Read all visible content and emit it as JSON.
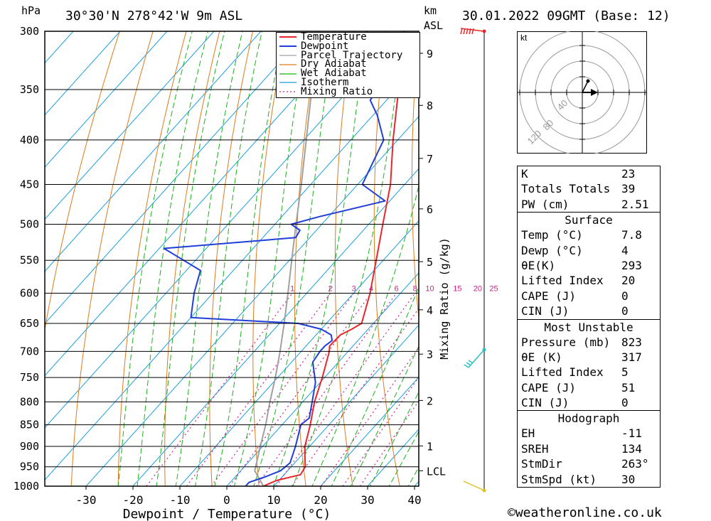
{
  "header": {
    "hpa_unit": "hPa",
    "location": "30°30'N  278°42'W  9m  ASL",
    "km_unit": "km",
    "asl_unit": "ASL",
    "datetime": "30.01.2022  09GMT  (Base: 12)"
  },
  "colors": {
    "temperature": "#e8262b",
    "dewpoint": "#1f3fd8",
    "parcel": "#a0a0a0",
    "dry_adiabat": "#e07a1a",
    "wet_adiabat": "#19b219",
    "isotherm": "#1c9fe0",
    "mixing_ratio": "#d0208a"
  },
  "legend": [
    {
      "label": "Temperature",
      "style": "temperature"
    },
    {
      "label": "Dewpoint",
      "style": "dewpoint"
    },
    {
      "label": "Parcel Trajectory",
      "style": "parcel"
    },
    {
      "label": "Dry Adiabat",
      "style": "dry_adiabat"
    },
    {
      "label": "Wet Adiabat",
      "style": "wet_adiabat"
    },
    {
      "label": "Isotherm",
      "style": "isotherm"
    },
    {
      "label": "Mixing Ratio",
      "style": "mixing_ratio"
    }
  ],
  "chart_data": {
    "type": "skew-t",
    "xlabel": "Dewpoint / Temperature (°C)",
    "mixing_ratio_axis_label": "Mixing Ratio (g/kg)",
    "pressure_levels": [
      300,
      350,
      400,
      450,
      500,
      550,
      600,
      650,
      700,
      750,
      800,
      850,
      900,
      950,
      1000
    ],
    "x_ticks": [
      -30,
      -20,
      -10,
      0,
      10,
      20,
      30,
      40
    ],
    "xlim": [
      -40,
      40
    ],
    "plim": [
      1000,
      300
    ],
    "height_ticks": [
      {
        "label": "9",
        "p": 318
      },
      {
        "label": "8",
        "p": 365
      },
      {
        "label": "7",
        "p": 420
      },
      {
        "label": "6",
        "p": 480
      },
      {
        "label": "5",
        "p": 552
      },
      {
        "label": "4",
        "p": 627
      },
      {
        "label": "3",
        "p": 705
      },
      {
        "label": "2",
        "p": 797
      },
      {
        "label": "1",
        "p": 899
      },
      {
        "label": "LCL",
        "p": 960
      }
    ],
    "mixing_ratio_lines": [
      "1",
      "2",
      "3",
      "4",
      "6",
      "8",
      "10",
      "15",
      "20",
      "25"
    ],
    "mixing_ratio_values": [
      1,
      2,
      3,
      4,
      6,
      8,
      10,
      15,
      20,
      25
    ],
    "temperature": [
      {
        "p": 1000,
        "t": 7.8
      },
      {
        "p": 985,
        "t": 9.5
      },
      {
        "p": 970,
        "t": 13.5
      },
      {
        "p": 950,
        "t": 13.0
      },
      {
        "p": 925,
        "t": 11.0
      },
      {
        "p": 900,
        "t": 9.0
      },
      {
        "p": 850,
        "t": 6.0
      },
      {
        "p": 800,
        "t": 2.5
      },
      {
        "p": 750,
        "t": -0.5
      },
      {
        "p": 700,
        "t": -4.0
      },
      {
        "p": 690,
        "t": -5.0
      },
      {
        "p": 670,
        "t": -4.8
      },
      {
        "p": 660,
        "t": -3.5
      },
      {
        "p": 650,
        "t": -2.5
      },
      {
        "p": 600,
        "t": -6.5
      },
      {
        "p": 550,
        "t": -11.5
      },
      {
        "p": 500,
        "t": -17.0
      },
      {
        "p": 450,
        "t": -23.0
      },
      {
        "p": 400,
        "t": -31.0
      },
      {
        "p": 350,
        "t": -39.5
      },
      {
        "p": 300,
        "t": -49.5
      }
    ],
    "dewpoint": [
      {
        "p": 1000,
        "t": 4.0
      },
      {
        "p": 990,
        "t": 4.0
      },
      {
        "p": 975,
        "t": 6.5
      },
      {
        "p": 960,
        "t": 8.5
      },
      {
        "p": 940,
        "t": 9.0
      },
      {
        "p": 900,
        "t": 7.0
      },
      {
        "p": 850,
        "t": 4.0
      },
      {
        "p": 835,
        "t": 4.5
      },
      {
        "p": 800,
        "t": 2.0
      },
      {
        "p": 760,
        "t": -1.0
      },
      {
        "p": 720,
        "t": -5.5
      },
      {
        "p": 700,
        "t": -6.0
      },
      {
        "p": 690,
        "t": -6.0
      },
      {
        "p": 680,
        "t": -5.5
      },
      {
        "p": 670,
        "t": -6.8
      },
      {
        "p": 660,
        "t": -10.0
      },
      {
        "p": 650,
        "t": -16.0
      },
      {
        "p": 640,
        "t": -40.0
      },
      {
        "p": 600,
        "t": -44.0
      },
      {
        "p": 565,
        "t": -47.0
      },
      {
        "p": 533,
        "t": -59.0
      },
      {
        "p": 518,
        "t": -33.0
      },
      {
        "p": 508,
        "t": -33.5
      },
      {
        "p": 500,
        "t": -36.5
      },
      {
        "p": 490,
        "t": -32.0
      },
      {
        "p": 470,
        "t": -21.0
      },
      {
        "p": 450,
        "t": -29.0
      },
      {
        "p": 400,
        "t": -33.0
      },
      {
        "p": 375,
        "t": -39.0
      },
      {
        "p": 360,
        "t": -43.5
      },
      {
        "p": 350,
        "t": -44.0
      },
      {
        "p": 340,
        "t": -41.5
      },
      {
        "p": 325,
        "t": -47.0
      },
      {
        "p": 310,
        "t": -55.0
      },
      {
        "p": 300,
        "t": -57.5
      }
    ],
    "parcel": [
      {
        "p": 1000,
        "t": 7.8
      },
      {
        "p": 960,
        "t": 3.0
      },
      {
        "p": 900,
        "t": -0.5
      },
      {
        "p": 850,
        "t": -3.5
      },
      {
        "p": 800,
        "t": -7.0
      },
      {
        "p": 750,
        "t": -10.5
      },
      {
        "p": 700,
        "t": -14.5
      },
      {
        "p": 650,
        "t": -19.0
      },
      {
        "p": 600,
        "t": -24.0
      },
      {
        "p": 550,
        "t": -29.5
      },
      {
        "p": 500,
        "t": -35.5
      },
      {
        "p": 450,
        "t": -42.0
      },
      {
        "p": 400,
        "t": -49.5
      },
      {
        "p": 350,
        "t": -58.0
      },
      {
        "p": 300,
        "t": -68.0
      }
    ]
  },
  "hodograph": {
    "unit": "kt",
    "rings": [
      "40",
      "80",
      "120"
    ]
  },
  "indices": {
    "general": [
      {
        "label": "K",
        "value": "23"
      },
      {
        "label": "Totals Totals",
        "value": "39"
      },
      {
        "label": "PW (cm)",
        "value": "2.51"
      }
    ],
    "surface_title": "Surface",
    "surface": [
      {
        "label": "Temp (°C)",
        "value": "7.8"
      },
      {
        "label": "Dewp (°C)",
        "value": "4"
      },
      {
        "label": "θE(K)",
        "value": "293"
      },
      {
        "label": "Lifted Index",
        "value": "20"
      },
      {
        "label": "CAPE (J)",
        "value": "0"
      },
      {
        "label": "CIN (J)",
        "value": "0"
      }
    ],
    "unstable_title": "Most Unstable",
    "unstable": [
      {
        "label": "Pressure (mb)",
        "value": "823"
      },
      {
        "label": "θE (K)",
        "value": "317"
      },
      {
        "label": "Lifted Index",
        "value": "5"
      },
      {
        "label": "CAPE (J)",
        "value": "51"
      },
      {
        "label": "CIN (J)",
        "value": "0"
      }
    ],
    "hodograph_title": "Hodograph",
    "hodo": [
      {
        "label": "EH",
        "value": "-11"
      },
      {
        "label": "SREH",
        "value": "134"
      },
      {
        "label": "StmDir",
        "value": "263°"
      },
      {
        "label": "StmSpd (kt)",
        "value": "30"
      }
    ]
  },
  "footer": {
    "credit": "©weatheronline.co.uk"
  }
}
